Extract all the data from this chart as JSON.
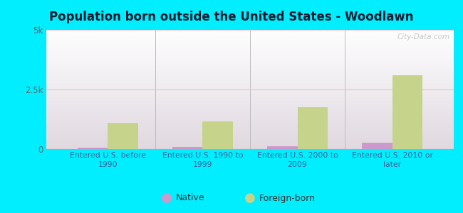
{
  "title": "Population born outside the United States - Woodlawn",
  "categories": [
    "Entered U.S. before\n1990",
    "Entered U.S. 1990 to\n1999",
    "Entered U.S. 2000 to\n2009",
    "Entered U.S. 2010 or\nlater"
  ],
  "native_values": [
    60,
    90,
    110,
    280
  ],
  "foreign_values": [
    1100,
    1150,
    1750,
    3100
  ],
  "native_color": "#cc99cc",
  "foreign_color": "#c5d48a",
  "ylim": [
    0,
    5000
  ],
  "yticks": [
    0,
    2500,
    5000
  ],
  "ytick_labels": [
    "0",
    "2.5k",
    "5k"
  ],
  "outer_background": "#00eeff",
  "title_fontsize": 12,
  "legend_labels": [
    "Native",
    "Foreign-born"
  ],
  "bar_width": 0.32,
  "watermark": "City-Data.com",
  "grid_color": "#f5c0c8",
  "divider_color": "#bbbbbb",
  "label_color": "#336699",
  "tick_label_color": "#666666"
}
